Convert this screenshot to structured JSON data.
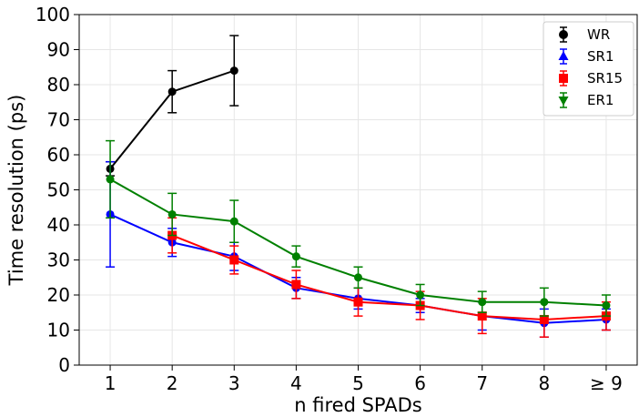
{
  "chart_data": {
    "type": "line",
    "title": "",
    "xlabel": "n fired SPADs",
    "ylabel": "Time resolution (ps)",
    "categories": [
      "1",
      "2",
      "3",
      "4",
      "5",
      "6",
      "7",
      "8",
      "≥ 9"
    ],
    "ylim": [
      0,
      100
    ],
    "yticks": [
      "0",
      "10",
      "20",
      "30",
      "40",
      "50",
      "60",
      "70",
      "80",
      "90",
      "100"
    ],
    "grid": true,
    "legend_position": "top-right",
    "series": [
      {
        "name": "WR",
        "color": "#000000",
        "marker": "circle",
        "values": [
          56,
          78,
          84,
          null,
          null,
          null,
          null,
          null,
          null
        ],
        "errors": [
          2,
          6,
          10,
          null,
          null,
          null,
          null,
          null,
          null
        ]
      },
      {
        "name": "SR1",
        "color": "#0000ff",
        "marker": "triangle-up",
        "values": [
          43,
          35,
          31,
          22,
          19,
          17,
          14,
          12,
          13
        ],
        "errors": [
          15,
          4,
          4,
          3,
          3,
          2,
          4,
          4,
          3
        ]
      },
      {
        "name": "SR15",
        "color": "#ff0000",
        "marker": "square",
        "values": [
          null,
          37,
          30,
          23,
          18,
          17,
          14,
          13,
          14
        ],
        "errors": [
          null,
          5,
          4,
          4,
          4,
          4,
          5,
          5,
          4
        ]
      },
      {
        "name": "ER1",
        "color": "#008000",
        "marker": "triangle-down",
        "values": [
          53,
          43,
          41,
          31,
          25,
          20,
          18,
          18,
          17
        ],
        "errors": [
          11,
          6,
          6,
          3,
          3,
          3,
          3,
          4,
          3
        ]
      }
    ]
  }
}
